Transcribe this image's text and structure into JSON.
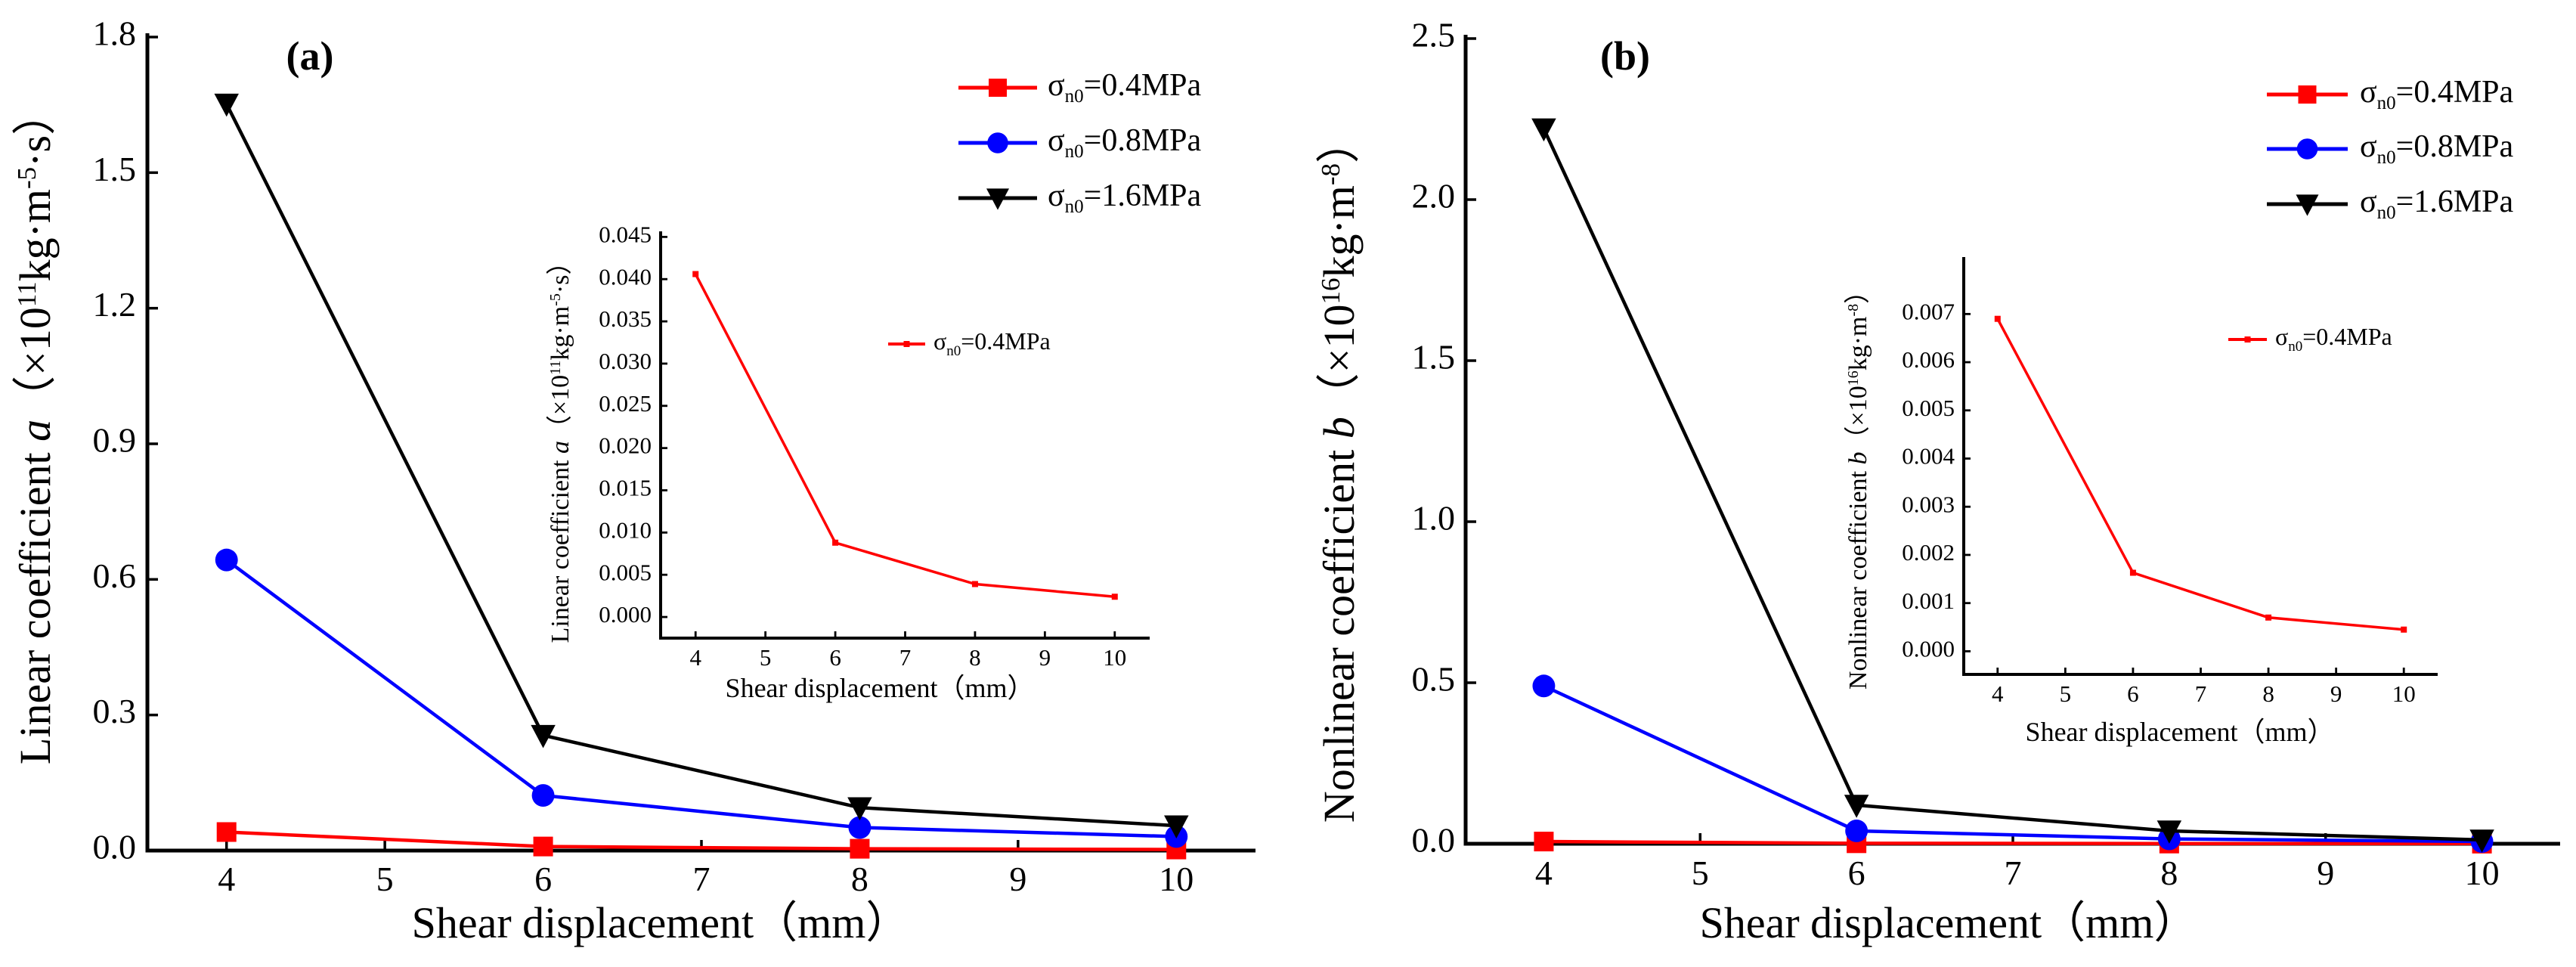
{
  "colors": {
    "red": "#ff0000",
    "blue": "#0000ff",
    "black": "#000000"
  },
  "chart_data": [
    {
      "type": "line",
      "panel_label": "(a)",
      "xlabel": "Shear displacement（mm）",
      "ylabel": {
        "text": "Linear coefficient ",
        "var": "a",
        "u1": "（×10",
        "e1": "11",
        "u2": "kg·m",
        "e2": "-5",
        "u3": "·s）"
      },
      "x": [
        4,
        6,
        8,
        10
      ],
      "xlim": [
        3.5,
        10.5
      ],
      "ylim": [
        0,
        1.8
      ],
      "xticks": [
        "4",
        "5",
        "6",
        "7",
        "8",
        "9",
        "10"
      ],
      "yticks": [
        "0.0",
        "0.3",
        "0.6",
        "0.9",
        "1.2",
        "1.5",
        "1.8"
      ],
      "legend_position": "top-right",
      "series": [
        {
          "name": {
            "sym": "σ",
            "sub": "n0",
            "val": "=0.4MPa"
          },
          "color": "#ff0000",
          "marker": "square",
          "values": [
            0.041,
            0.009,
            0.004,
            0.0024
          ]
        },
        {
          "name": {
            "sym": "σ",
            "sub": "n0",
            "val": "=0.8MPa"
          },
          "color": "#0000ff",
          "marker": "circle",
          "values": [
            0.643,
            0.122,
            0.051,
            0.031
          ]
        },
        {
          "name": {
            "sym": "σ",
            "sub": "n0",
            "val": "=1.6MPa"
          },
          "color": "#000000",
          "marker": "triangle-down",
          "values": [
            1.652,
            0.255,
            0.095,
            0.055
          ]
        }
      ],
      "inset": {
        "xlabel": "Shear displacement（mm）",
        "ylabel": {
          "text": "Linear coefficient ",
          "var": "a",
          "u1": "（×10",
          "e1": "11",
          "u2": "kg·m",
          "e2": "-5",
          "u3": "·s）"
        },
        "x": [
          4,
          6,
          8,
          10
        ],
        "xlim": [
          3.5,
          10.5
        ],
        "ylim": [
          -0.0025,
          0.0453
        ],
        "xticks": [
          "4",
          "5",
          "6",
          "7",
          "8",
          "9",
          "10"
        ],
        "yticks": [
          "0.000",
          "0.005",
          "0.010",
          "0.015",
          "0.020",
          "0.025",
          "0.030",
          "0.035",
          "0.040",
          "0.045"
        ],
        "series": [
          {
            "name": {
              "sym": "σ",
              "sub": "n0",
              "val": "=0.4MPa"
            },
            "color": "#ff0000",
            "values": [
              0.0406,
              0.0088,
              0.0039,
              0.0024
            ]
          }
        ]
      }
    },
    {
      "type": "line",
      "panel_label": "(b)",
      "xlabel": "Shear displacement（mm）",
      "ylabel": {
        "text": "Nonlinear coefficient ",
        "var": "b",
        "u1": "（×10",
        "e1": "16",
        "u2": "kg·m",
        "e2": "-8",
        "u3": "）"
      },
      "x": [
        4,
        6,
        8,
        10
      ],
      "xlim": [
        3.5,
        10.5
      ],
      "ylim": [
        0,
        2.5
      ],
      "xticks": [
        "4",
        "5",
        "6",
        "7",
        "8",
        "9",
        "10"
      ],
      "yticks": [
        "0.0",
        "0.5",
        "1.0",
        "1.5",
        "2.0",
        "2.5"
      ],
      "legend_position": "top-right",
      "series": [
        {
          "name": {
            "sym": "σ",
            "sub": "n0",
            "val": "=0.4MPa"
          },
          "color": "#ff0000",
          "marker": "square",
          "values": [
            0.0069,
            0.0016,
            0.0007,
            0.00045
          ]
        },
        {
          "name": {
            "sym": "σ",
            "sub": "n0",
            "val": "=0.8MPa"
          },
          "color": "#0000ff",
          "marker": "circle",
          "values": [
            0.49,
            0.04,
            0.015,
            0.007
          ]
        },
        {
          "name": {
            "sym": "σ",
            "sub": "n0",
            "val": "=1.6MPa"
          },
          "color": "#000000",
          "marker": "triangle-down",
          "values": [
            2.22,
            0.12,
            0.04,
            0.012
          ]
        }
      ],
      "inset": {
        "xlabel": "Shear displacement（mm）",
        "ylabel": {
          "text": "Nonlinear coefficient ",
          "var": "b",
          "u1": "（×10",
          "e1": "16",
          "u2": "kg·m",
          "e2": "-8",
          "u3": "）"
        },
        "x": [
          4,
          6,
          8,
          10
        ],
        "xlim": [
          3.5,
          10.5
        ],
        "ylim": [
          -0.00048,
          0.00757
        ],
        "xticks": [
          "4",
          "5",
          "6",
          "7",
          "8",
          "9",
          "10"
        ],
        "yticks": [
          "0.000",
          "0.001",
          "0.002",
          "0.003",
          "0.004",
          "0.005",
          "0.006",
          "0.007"
        ],
        "series": [
          {
            "name": {
              "sym": "σ",
              "sub": "n0",
              "val": "=0.4MPa"
            },
            "color": "#ff0000",
            "values": [
              0.0069,
              0.00163,
              0.0007,
              0.00045
            ]
          }
        ]
      }
    }
  ]
}
